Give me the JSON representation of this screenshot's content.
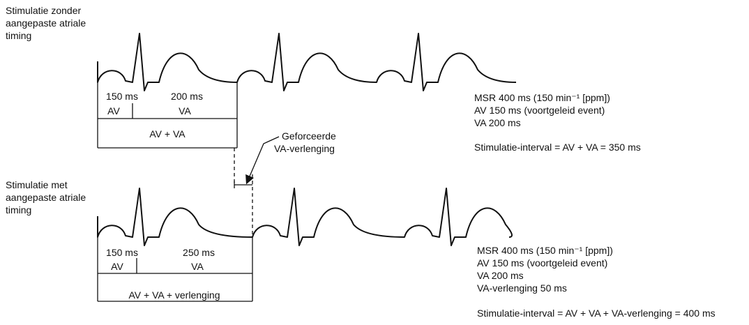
{
  "top": {
    "label": [
      "Stimulatie zonder",
      "aangepaste atriale",
      "timing"
    ],
    "av_ms": "150 ms",
    "va_ms": "200 ms",
    "av": "AV",
    "va": "VA",
    "sum": "AV + VA",
    "info": [
      "MSR 400 ms (150 min⁻¹ [ppm])",
      "AV 150 ms (voortgeleid event)",
      "VA 200 ms",
      "Stimulatie-interval = AV + VA = 350 ms"
    ]
  },
  "annotation": [
    "Geforceerde",
    "VA-verlenging"
  ],
  "bottom": {
    "label": [
      "Stimulatie met",
      "aangepaste atriale",
      "timing"
    ],
    "av_ms": "150 ms",
    "va_ms": "250 ms",
    "av": "AV",
    "va": "VA",
    "sum": "AV + VA + verlenging",
    "info": [
      "MSR 400 ms (150 min⁻¹ [ppm])",
      "AV 150 ms (voortgeleid event)",
      "VA 200 ms",
      "VA-verlenging 50 ms",
      "Stimulatie-interval = AV + VA + VA-verlenging = 400 ms"
    ]
  }
}
